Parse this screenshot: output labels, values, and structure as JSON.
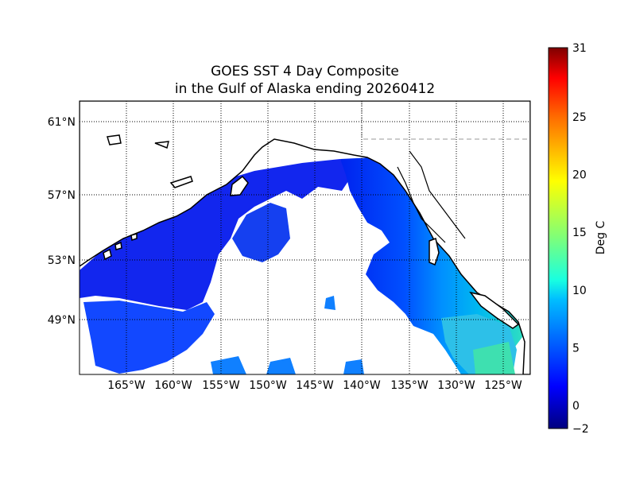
{
  "title_line1": "GOES SST 4 Day Composite",
  "title_line2": "in the Gulf of Alaska ending 20260412",
  "map": {
    "lon_range": [
      -171,
      -120
    ],
    "lat_range": [
      46,
      61.5
    ],
    "lon_ticks": [
      "165°W",
      "160°W",
      "155°W",
      "150°W",
      "145°W",
      "140°W",
      "135°W",
      "130°W",
      "125°W"
    ],
    "lat_ticks": [
      "61°N",
      "57°N",
      "53°N",
      "49°N"
    ],
    "gridlines": "dotted",
    "land_color": "#ffffff",
    "coastline_color": "#000000",
    "missing_data_color": "#ffffff"
  },
  "colorbar": {
    "label": "Deg C",
    "vmin": -2,
    "vmax": 31,
    "tick_labels": [
      "−2",
      "0",
      "5",
      "10",
      "15",
      "20",
      "25",
      "31"
    ],
    "colormap": "jet"
  }
}
